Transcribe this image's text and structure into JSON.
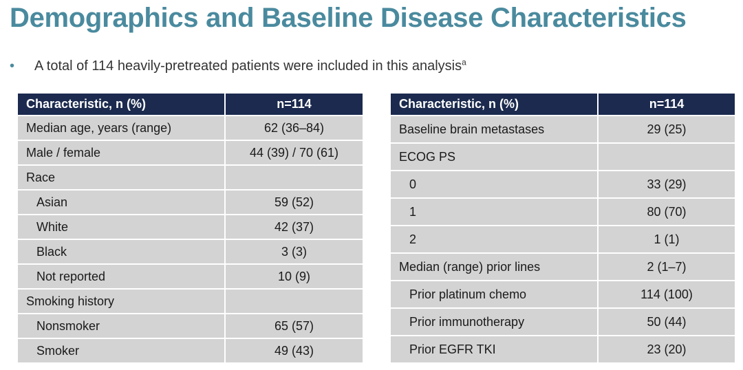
{
  "title": "Demographics and Baseline Disease Characteristics",
  "bullet": {
    "marker": "•",
    "text": "A total of 114 heavily-pretreated patients were included in this analysis",
    "superscript": "a"
  },
  "left_table": {
    "headers": [
      "Characteristic, n (%)",
      "n=114"
    ],
    "rows": [
      {
        "label": "Median age, years (range)",
        "value": "62 (36–84)",
        "indent": false
      },
      {
        "label": "Male / female",
        "value": "44 (39) / 70 (61)",
        "indent": false
      },
      {
        "label": "Race",
        "value": "",
        "indent": false
      },
      {
        "label": "Asian",
        "value": "59 (52)",
        "indent": true
      },
      {
        "label": "White",
        "value": "42 (37)",
        "indent": true
      },
      {
        "label": "Black",
        "value": "3 (3)",
        "indent": true
      },
      {
        "label": "Not reported",
        "value": "10 (9)",
        "indent": true
      },
      {
        "label": "Smoking history",
        "value": "",
        "indent": false
      },
      {
        "label": "Nonsmoker",
        "value": "65 (57)",
        "indent": true
      },
      {
        "label": "Smoker",
        "value": "49 (43)",
        "indent": true
      }
    ]
  },
  "right_table": {
    "headers": [
      "Characteristic, n (%)",
      "n=114"
    ],
    "rows": [
      {
        "label": "Baseline brain metastases",
        "value": "29 (25)",
        "indent": false
      },
      {
        "label": "ECOG PS",
        "value": "",
        "indent": false
      },
      {
        "label": "0",
        "value": "33 (29)",
        "indent": true
      },
      {
        "label": "1",
        "value": "80 (70)",
        "indent": true
      },
      {
        "label": "2",
        "value": "1 (1)",
        "indent": true
      },
      {
        "label": "Median (range) prior lines",
        "value": "2 (1–7)",
        "indent": false
      },
      {
        "label": "Prior platinum chemo",
        "value": "114 (100)",
        "indent": true
      },
      {
        "label": "Prior immunotherapy",
        "value": "50 (44)",
        "indent": true
      },
      {
        "label": "Prior EGFR TKI",
        "value": "23 (20)",
        "indent": true
      }
    ]
  },
  "colors": {
    "title": "#4a8a9e",
    "header_bg": "#1b2a4e",
    "row_bg": "#d3d3d3"
  }
}
